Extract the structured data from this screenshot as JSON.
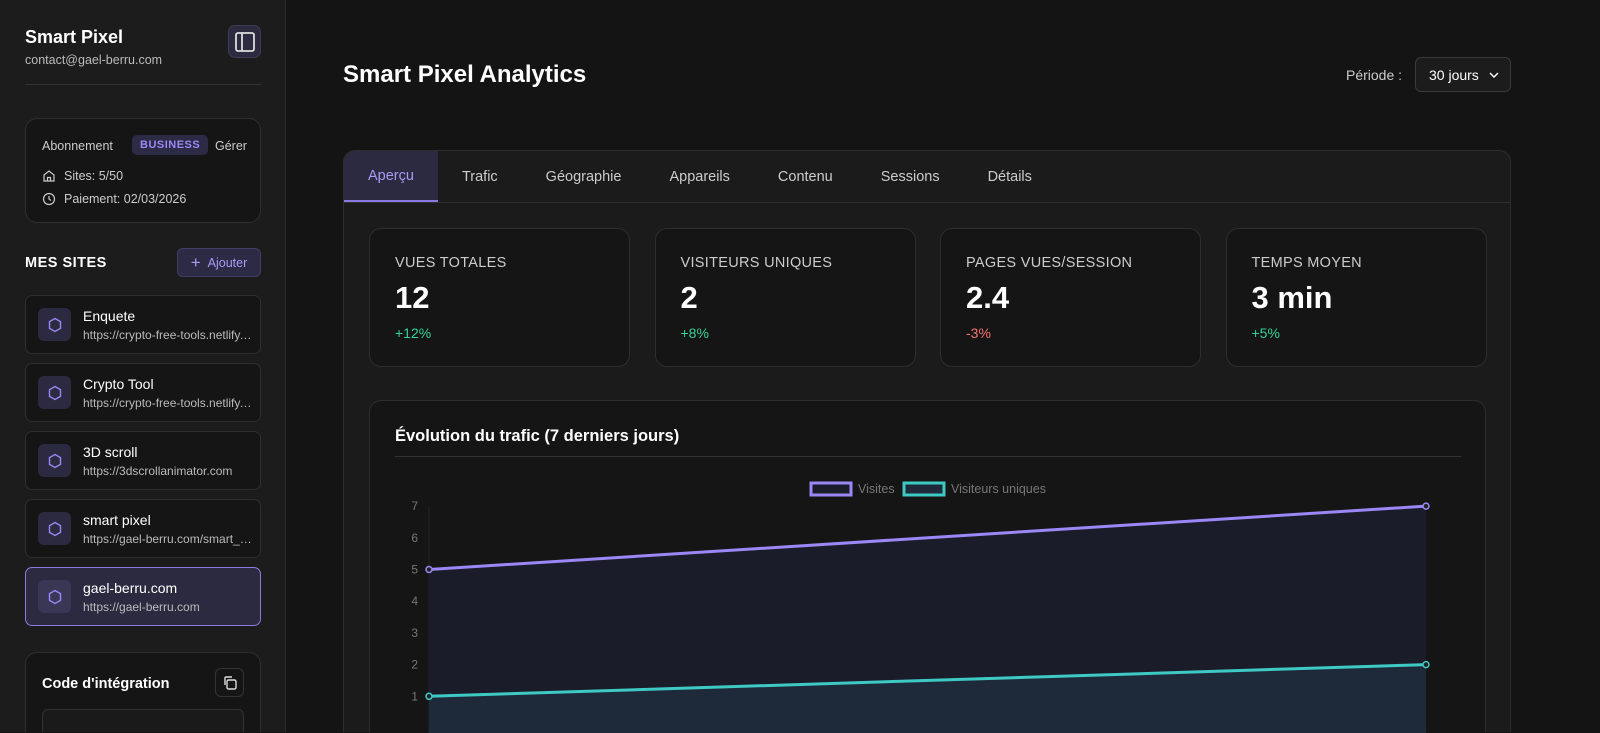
{
  "sidebar": {
    "brand": "Smart Pixel",
    "email": "contact@gael-berru.com",
    "subscription": {
      "label": "Abonnement",
      "plan": "BUSINESS",
      "manage": "Gérer",
      "sites": "Sites: 5/50",
      "payment": "Paiement: 02/03/2026"
    },
    "sites_title": "MES SITES",
    "add_label": "Ajouter",
    "sites": [
      {
        "name": "Enquete",
        "url": "https://crypto-free-tools.netlify.app"
      },
      {
        "name": "Crypto Tool",
        "url": "https://crypto-free-tools.netlify.app"
      },
      {
        "name": "3D scroll",
        "url": "https://3dscrollanimator.com"
      },
      {
        "name": "smart pixel",
        "url": "https://gael-berru.com/smart_pixel"
      },
      {
        "name": "gael-berru.com",
        "url": "https://gael-berru.com"
      }
    ],
    "code_title": "Code d'intégration"
  },
  "header": {
    "title": "Smart Pixel Analytics",
    "period_label": "Période :",
    "period_value": "30 jours"
  },
  "tabs": [
    "Aperçu",
    "Trafic",
    "Géographie",
    "Appareils",
    "Contenu",
    "Sessions",
    "Détails"
  ],
  "stats": [
    {
      "label": "VUES TOTALES",
      "value": "12",
      "change": "+12%",
      "color": "#34d399"
    },
    {
      "label": "VISITEURS UNIQUES",
      "value": "2",
      "change": "+8%",
      "color": "#34d399"
    },
    {
      "label": "PAGES VUES/SESSION",
      "value": "2.4",
      "change": "-3%",
      "color": "#f87171"
    },
    {
      "label": "TEMPS MOYEN",
      "value": "3 min",
      "change": "+5%",
      "color": "#34d399"
    }
  ],
  "chart_data": {
    "type": "line",
    "title": "Évolution du trafic (7 derniers jours)",
    "ylim": [
      0,
      7
    ],
    "yticks": [
      "1",
      "2",
      "3",
      "4",
      "5",
      "6",
      "7"
    ],
    "series": [
      {
        "name": "Visites",
        "values": [
          5,
          7
        ],
        "color": "#9b87f5",
        "fill": "#1a1c2a"
      },
      {
        "name": "Visiteurs uniques",
        "values": [
          1,
          2
        ],
        "color": "#3ec9c4",
        "fill": "#1e2a3a"
      }
    ]
  }
}
